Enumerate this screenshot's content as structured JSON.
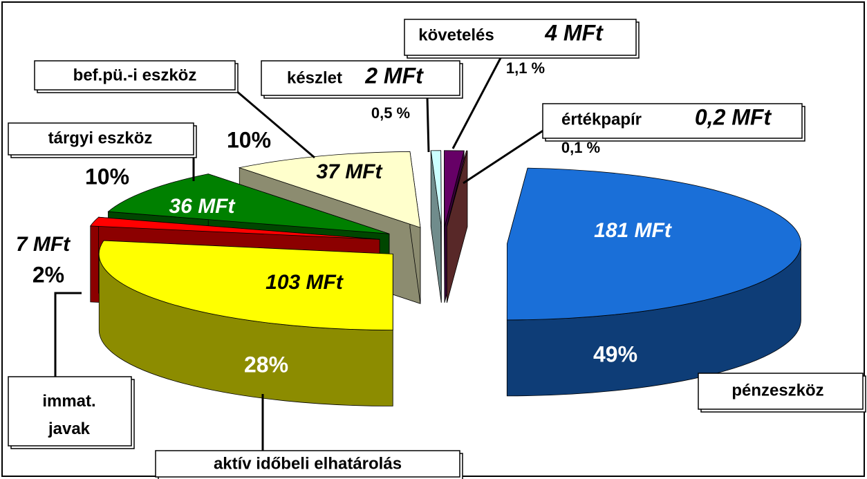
{
  "chart_data": {
    "type": "pie3d",
    "categories": [
      "pénzeszköz",
      "aktív időbeli elhatárolás",
      "immat. javak",
      "tárgyi eszköz",
      "bef.pü.-i eszköz",
      "készlet",
      "követelés",
      "értékpapír"
    ],
    "values": [
      181,
      103,
      7,
      36,
      37,
      2,
      4,
      0.2
    ],
    "value_labels": [
      "181 MFt",
      "103 MFt",
      "7 MFt",
      "36 MFt",
      "37 MFt",
      "2 MFt",
      "4 MFt",
      "0,2 MFt"
    ],
    "percents": [
      49,
      28,
      2,
      10,
      10,
      0.5,
      1.1,
      0.1
    ],
    "percent_labels": [
      "49%",
      "28%",
      "2%",
      "10%",
      "10%",
      "0,5 %",
      "1,1 %",
      "0,1 %"
    ],
    "colors": [
      "#1a6fd8",
      "#ffff00",
      "#ff0000",
      "#008000",
      "#ffffcc",
      "#ccffff",
      "#660066",
      "#a04848"
    ]
  }
}
